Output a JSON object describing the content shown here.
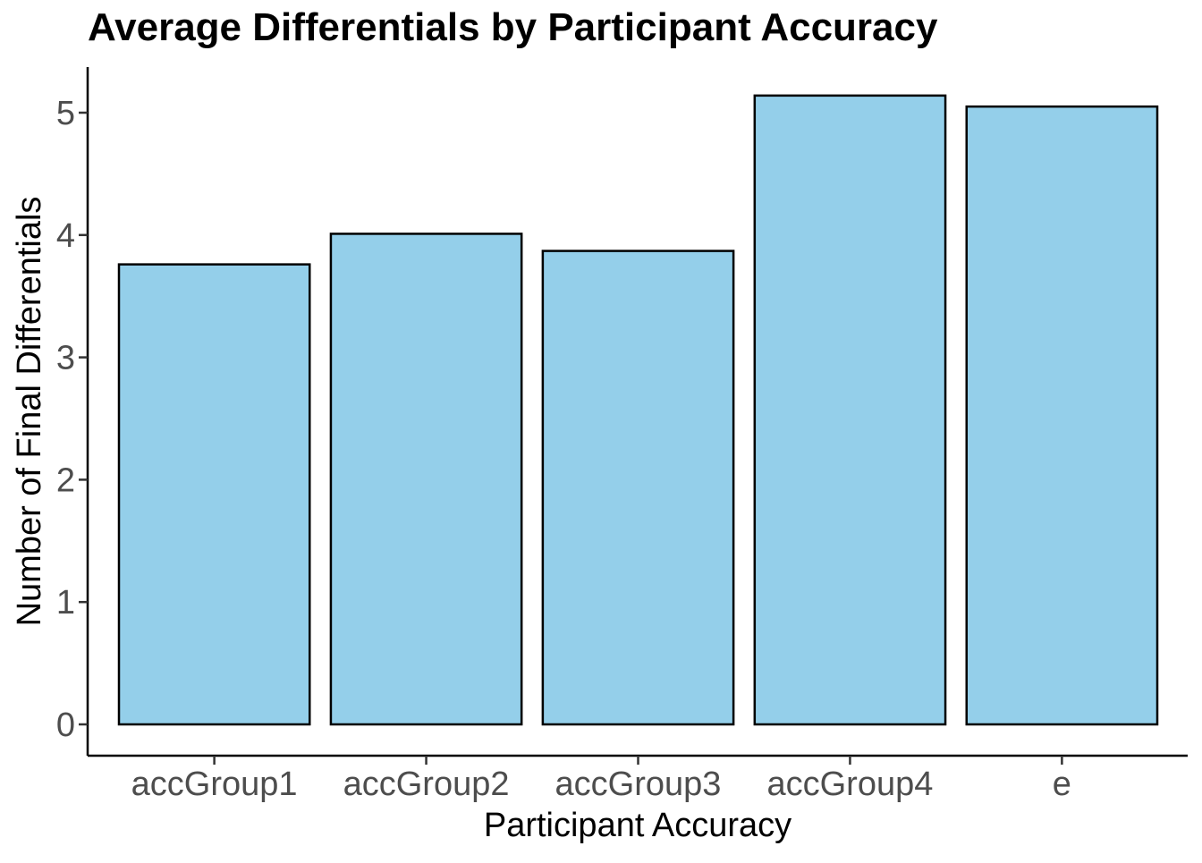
{
  "chart_data": {
    "type": "bar",
    "title": "Average Differentials by Participant Accuracy",
    "xlabel": "Participant Accuracy",
    "ylabel": "Number of Final Differentials",
    "categories": [
      "accGroup1",
      "accGroup2",
      "accGroup3",
      "accGroup4",
      "e"
    ],
    "values": [
      3.76,
      4.01,
      3.87,
      5.14,
      5.05
    ],
    "ylim": [
      0,
      5.35
    ],
    "yticks": [
      "0",
      "1",
      "2",
      "3",
      "4",
      "5"
    ],
    "grid": false,
    "bar_fill": "#94cfea",
    "bar_stroke": "#000000"
  }
}
